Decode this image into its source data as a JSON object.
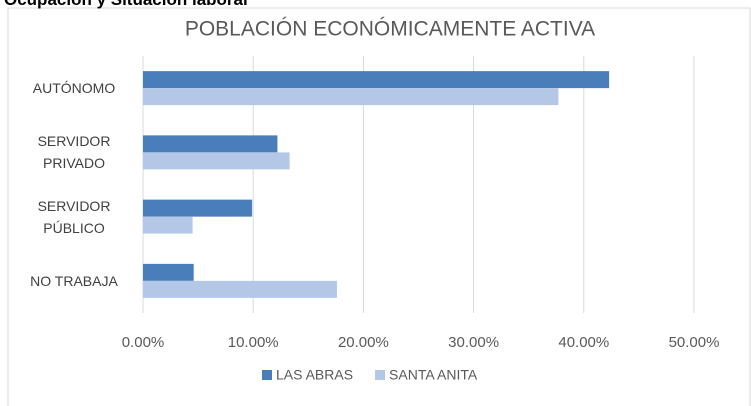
{
  "heading": "Ocupación y Situación laboral",
  "chart_data": {
    "type": "bar",
    "orientation": "horizontal",
    "title": "POBLACIÓN ECONÓMICAMENTE ACTIVA",
    "categories": [
      "AUTÓNOMO",
      "SERVIDOR PRIVADO",
      "SERVIDOR PÚBLICO",
      "NO TRABAJA"
    ],
    "series": [
      {
        "name": "LAS ABRAS",
        "color": "#4a7ebb",
        "values": [
          42.3,
          12.2,
          9.9,
          4.6
        ]
      },
      {
        "name": "SANTA ANITA",
        "color": "#b4c7e7",
        "values": [
          37.7,
          13.3,
          4.5,
          17.6
        ]
      }
    ],
    "xlim": [
      0,
      50
    ],
    "xticks": [
      {
        "value": 0,
        "label": "0.00%"
      },
      {
        "value": 10,
        "label": "10.00%"
      },
      {
        "value": 20,
        "label": "20.00%"
      },
      {
        "value": 30,
        "label": "30.00%"
      },
      {
        "value": 40,
        "label": "40.00%"
      },
      {
        "value": 50,
        "label": "50.00%"
      }
    ],
    "grid": true,
    "legend": "bottom"
  }
}
